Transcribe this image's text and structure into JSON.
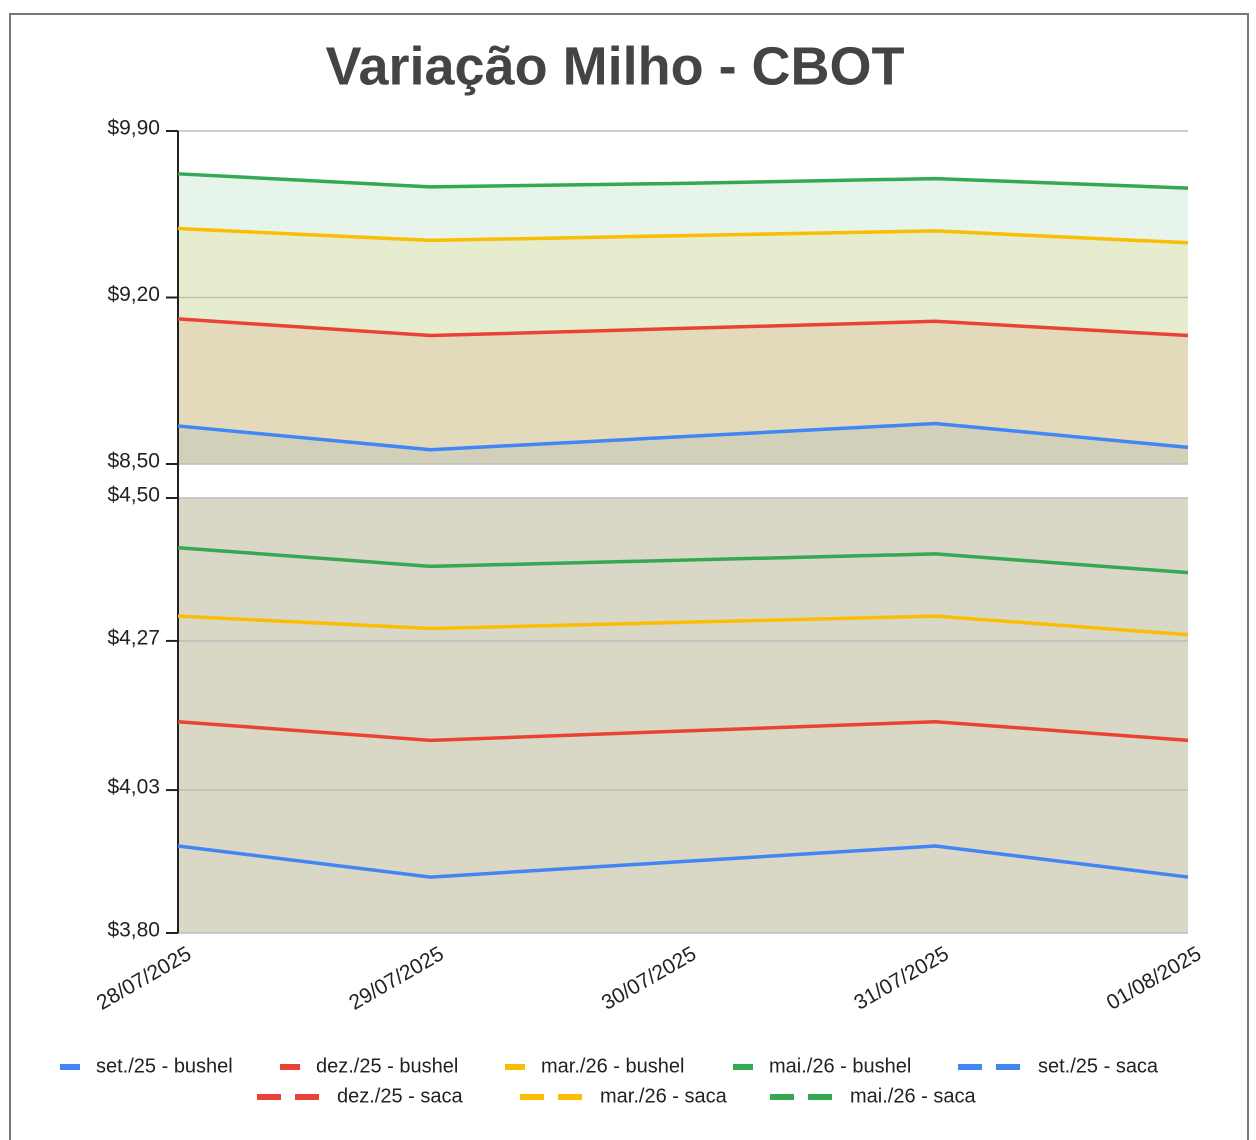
{
  "chart_data": {
    "type": "line",
    "title": "Variação Milho - CBOT",
    "categories": [
      "28/07/2025",
      "29/07/2025",
      "30/07/2025",
      "31/07/2025",
      "01/08/2025"
    ],
    "series": [
      {
        "name": "set./25 - bushel",
        "color": "#4285f4",
        "values": [
          3.94,
          3.89,
          3.915,
          3.94,
          3.89
        ]
      },
      {
        "name": "dez./25 - bushel",
        "color": "#ea4335",
        "values": [
          4.14,
          4.11,
          4.125,
          4.14,
          4.11
        ]
      },
      {
        "name": "mar./26 - bushel",
        "color": "#fbbc04",
        "values": [
          4.31,
          4.29,
          4.3,
          4.31,
          4.28
        ]
      },
      {
        "name": "mai./26 - bushel",
        "color": "#34a853",
        "values": [
          4.42,
          4.39,
          4.4,
          4.41,
          4.38
        ]
      },
      {
        "name": "set./25 - saca",
        "color": "#4285f4",
        "axis": "y2",
        "dashed": true,
        "values": [
          8.66,
          8.56,
          8.615,
          8.67,
          8.57
        ]
      },
      {
        "name": "dez./25 - saca",
        "color": "#ea4335",
        "axis": "y2",
        "dashed": true,
        "values": [
          9.11,
          9.04,
          9.07,
          9.1,
          9.04
        ]
      },
      {
        "name": "mar./26 - saca",
        "color": "#fbbc04",
        "axis": "y2",
        "dashed": true,
        "values": [
          9.49,
          9.44,
          9.46,
          9.48,
          9.43
        ]
      },
      {
        "name": "mai./26 - saca",
        "color": "#34a853",
        "axis": "y2",
        "dashed": true,
        "values": [
          9.72,
          9.665,
          9.68,
          9.7,
          9.66
        ]
      }
    ],
    "ylim": [
      3.8,
      4.5
    ],
    "yticks": [
      {
        "value": 3.8,
        "label": "$3,80"
      },
      {
        "value": 4.03,
        "label": "$4,03"
      },
      {
        "value": 4.27,
        "label": "$4,27"
      },
      {
        "value": 4.5,
        "label": "$4,50"
      }
    ],
    "y2lim": [
      8.5,
      9.9
    ],
    "y2ticks": [
      {
        "value": 8.5,
        "label": "$8,50"
      },
      {
        "value": 9.2,
        "label": "$9,20"
      },
      {
        "value": 9.9,
        "label": "$9,90"
      }
    ],
    "grid": true
  }
}
